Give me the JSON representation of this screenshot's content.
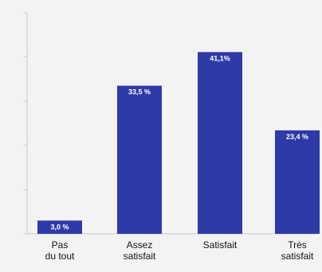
{
  "chart_data": {
    "type": "bar",
    "categories": [
      [
        "Pas",
        "du tout"
      ],
      [
        "Assez",
        "satisfait"
      ],
      [
        "Satisfait"
      ],
      [
        "Très",
        "satisfait"
      ]
    ],
    "values": [
      3.0,
      33.5,
      41.1,
      23.4
    ],
    "data_labels": [
      "3,0 %",
      "33,5 %",
      "41,1%",
      "23,4 %"
    ],
    "ylim": [
      0,
      50
    ],
    "grid": false,
    "legend": "none",
    "title": "",
    "xlabel": "",
    "ylabel": "",
    "colors": {
      "bar": "#2e3aa8",
      "label": "#ffffff",
      "axis": "#c9c9c9",
      "background": "#f3f3f3"
    }
  }
}
